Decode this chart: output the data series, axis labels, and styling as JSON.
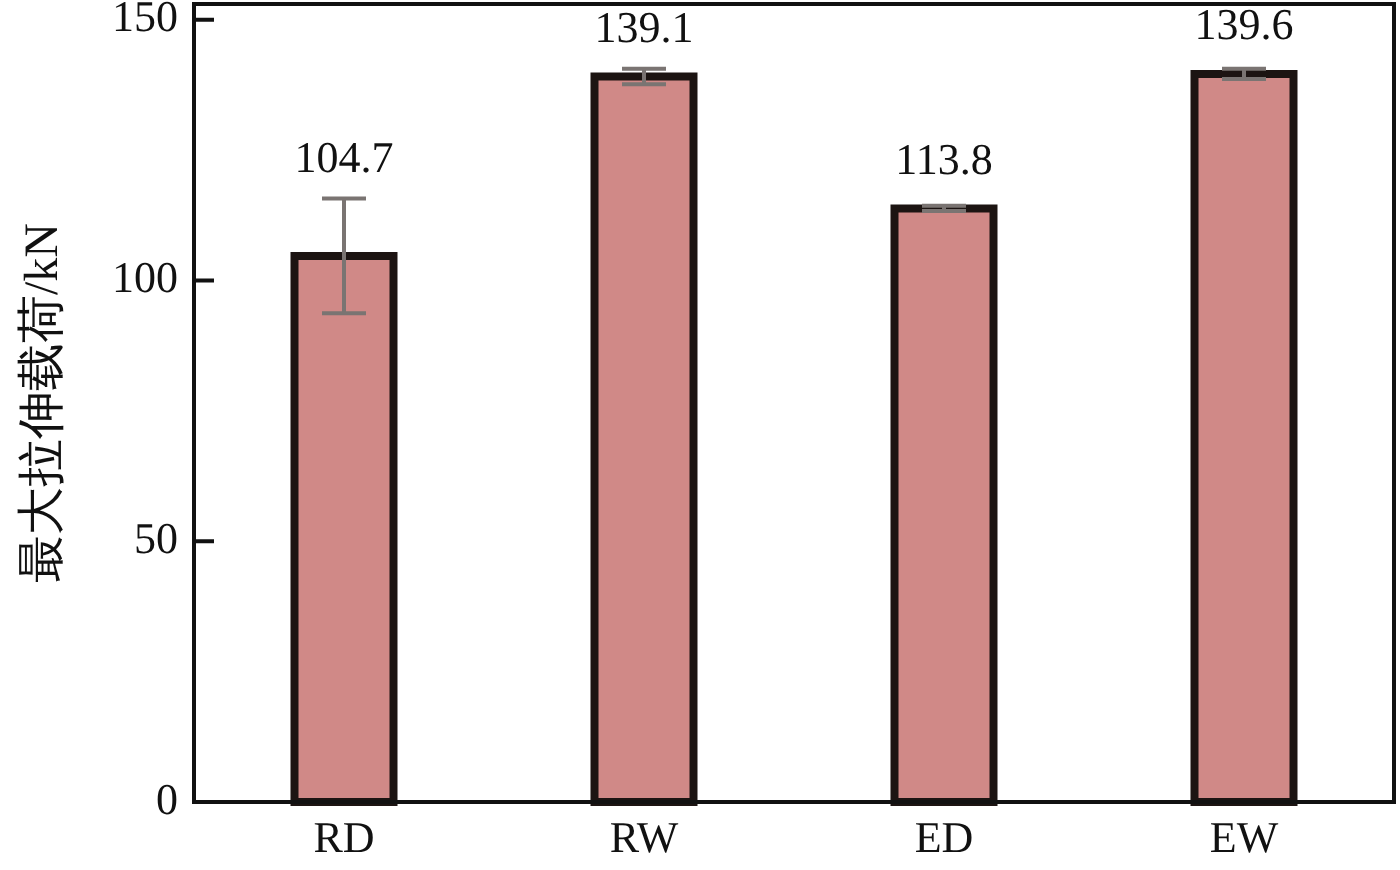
{
  "chart_data": {
    "type": "bar",
    "categories": [
      "RD",
      "RW",
      "ED",
      "EW"
    ],
    "values": [
      104.7,
      139.1,
      113.8,
      139.6
    ],
    "errors": [
      11,
      1.5,
      0.5,
      1
    ],
    "color": "#d08987",
    "ylabel": "最大拉伸载荷/kN",
    "ylim": [
      0,
      153
    ],
    "yticks": [
      0,
      50,
      100,
      150
    ],
    "data_labels": true
  }
}
